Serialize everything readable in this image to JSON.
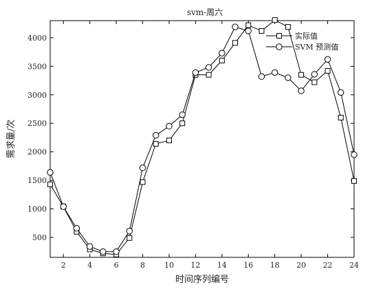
{
  "chart_data": {
    "type": "line",
    "title": "svm-周六",
    "xlabel": "时间序列编号",
    "ylabel": "需求量/次",
    "xlim": [
      1,
      24
    ],
    "ylim": [
      150,
      4300
    ],
    "x_ticks": [
      2,
      4,
      6,
      8,
      10,
      12,
      14,
      16,
      18,
      20,
      22,
      24
    ],
    "y_ticks": [
      500,
      1000,
      1500,
      2000,
      2500,
      3000,
      3500,
      4000
    ],
    "grid": false,
    "legend_position": "top-right",
    "x": [
      1,
      2,
      3,
      4,
      5,
      6,
      7,
      8,
      9,
      10,
      11,
      12,
      13,
      14,
      15,
      16,
      17,
      18,
      19,
      20,
      21,
      22,
      23,
      24
    ],
    "series": [
      {
        "name": "实际值",
        "marker": "square",
        "color": "#000000",
        "values": [
          1430,
          1040,
          600,
          290,
          220,
          200,
          490,
          1470,
          2140,
          2200,
          2500,
          3350,
          3350,
          3600,
          3910,
          4220,
          4120,
          4310,
          4190,
          3350,
          3220,
          3420,
          2600,
          1490
        ]
      },
      {
        "name": "SVM 预测值",
        "marker": "circle",
        "color": "#000000",
        "values": [
          1640,
          1040,
          660,
          340,
          250,
          250,
          610,
          1720,
          2290,
          2450,
          2650,
          3390,
          3480,
          3730,
          4190,
          4120,
          3320,
          3390,
          3300,
          3070,
          3360,
          3620,
          3040,
          1950
        ]
      }
    ]
  }
}
